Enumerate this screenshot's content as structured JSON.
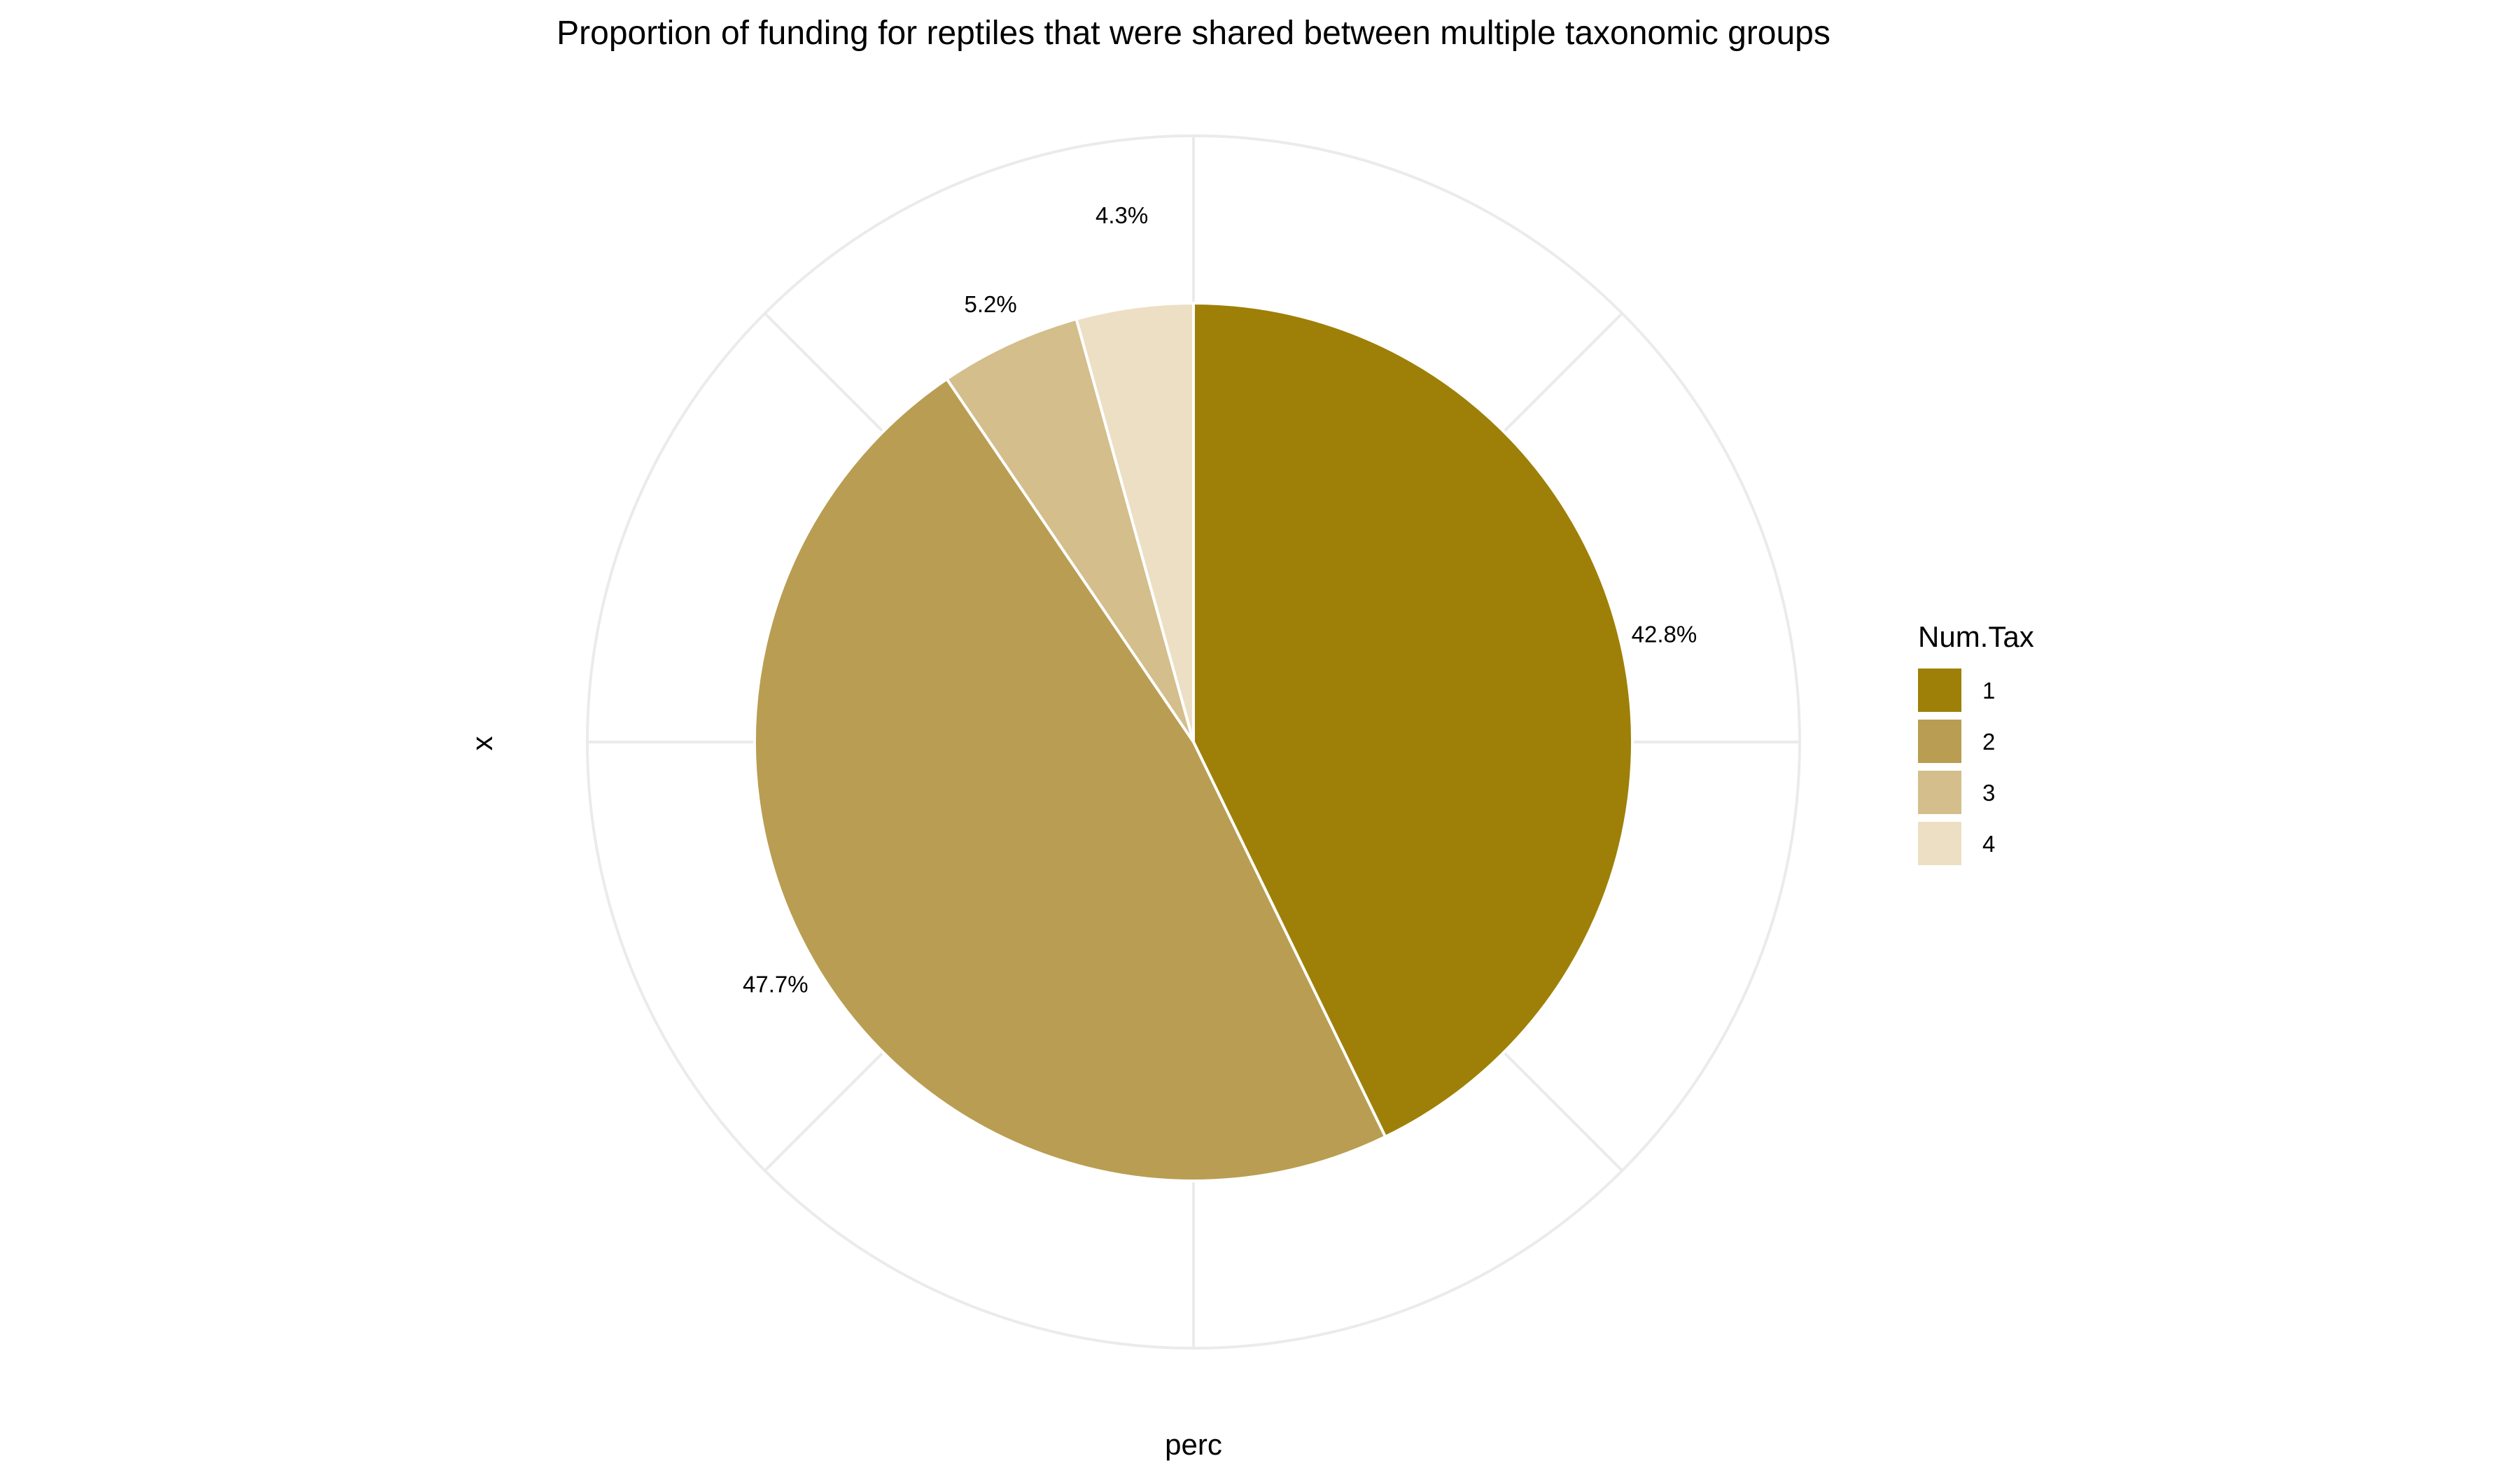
{
  "chart_data": {
    "type": "pie",
    "title": "Proportion of funding for reptiles that were shared between multiple taxonomic groups",
    "xlabel": "perc",
    "ylabel": "x",
    "legend": {
      "title": "Num.Tax",
      "position": "right"
    },
    "grid": true,
    "slices": [
      {
        "category": "1",
        "value": 42.8,
        "label": "42.8%",
        "color": "#9e8008"
      },
      {
        "category": "2",
        "value": 47.7,
        "label": "47.7%",
        "color": "#b99d52"
      },
      {
        "category": "3",
        "value": 5.2,
        "label": "5.2%",
        "color": "#d3be8c"
      },
      {
        "category": "4",
        "value": 4.3,
        "label": "4.3%",
        "color": "#ecdfc4"
      }
    ]
  }
}
